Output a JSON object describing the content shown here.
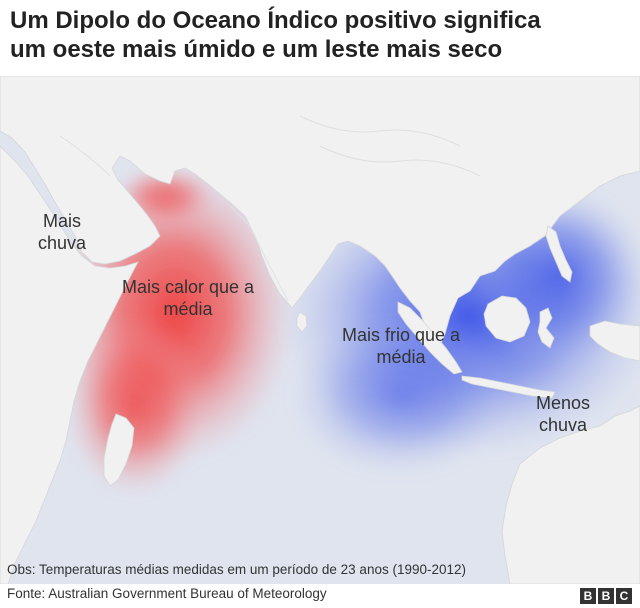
{
  "title": {
    "line1": "Um Dipolo do Oceano Índico positivo significa",
    "line2": "um oeste mais úmido e um leste mais seco"
  },
  "labels": {
    "wet_west": [
      "Mais",
      "chuva"
    ],
    "warm": [
      "Mais calor que a",
      "média"
    ],
    "cold": [
      "Mais frio que a",
      "média"
    ],
    "dry_east": [
      "Menos",
      "chuva"
    ]
  },
  "colors": {
    "ocean": "#dfe4ef",
    "land": "#f1f1f1",
    "warm_anomaly": "#f03c3c",
    "cold_anomaly": "#3c55e6"
  },
  "note": "Obs: Temperaturas médias medidas em um período de 23 anos (1990-2012)",
  "source": "Fonte: Australian Government Bureau of Meteorology",
  "logo": [
    "B",
    "B",
    "C"
  ]
}
